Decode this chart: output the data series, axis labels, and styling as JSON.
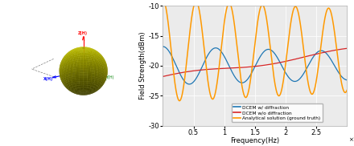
{
  "fig_width": 4.4,
  "fig_height": 1.82,
  "dpi": 100,
  "ylabel": "Field Strength(dBm)",
  "xlabel": "Frequency(Hz)",
  "ylim": [
    -30,
    -10
  ],
  "xlim": [
    0,
    30000000000.0
  ],
  "yticks": [
    -30,
    -25,
    -20,
    -15,
    -10
  ],
  "xticks": [
    5000000000.0,
    10000000000.0,
    15000000000.0,
    20000000000.0,
    25000000000.0
  ],
  "xtick_labels": [
    "0.5",
    "1",
    "1.5",
    "2",
    "2.5"
  ],
  "legend": [
    "DCEM w/ diffraction",
    "DCEM w/o diffraction",
    "Analytical solution (ground truth)"
  ],
  "line_colors": [
    "#1f77b4",
    "#d62728",
    "#ff9900"
  ],
  "background_color": "#ebebeb",
  "sphere_color_yellow": "#cccc00",
  "grid_color": "#ffffff"
}
